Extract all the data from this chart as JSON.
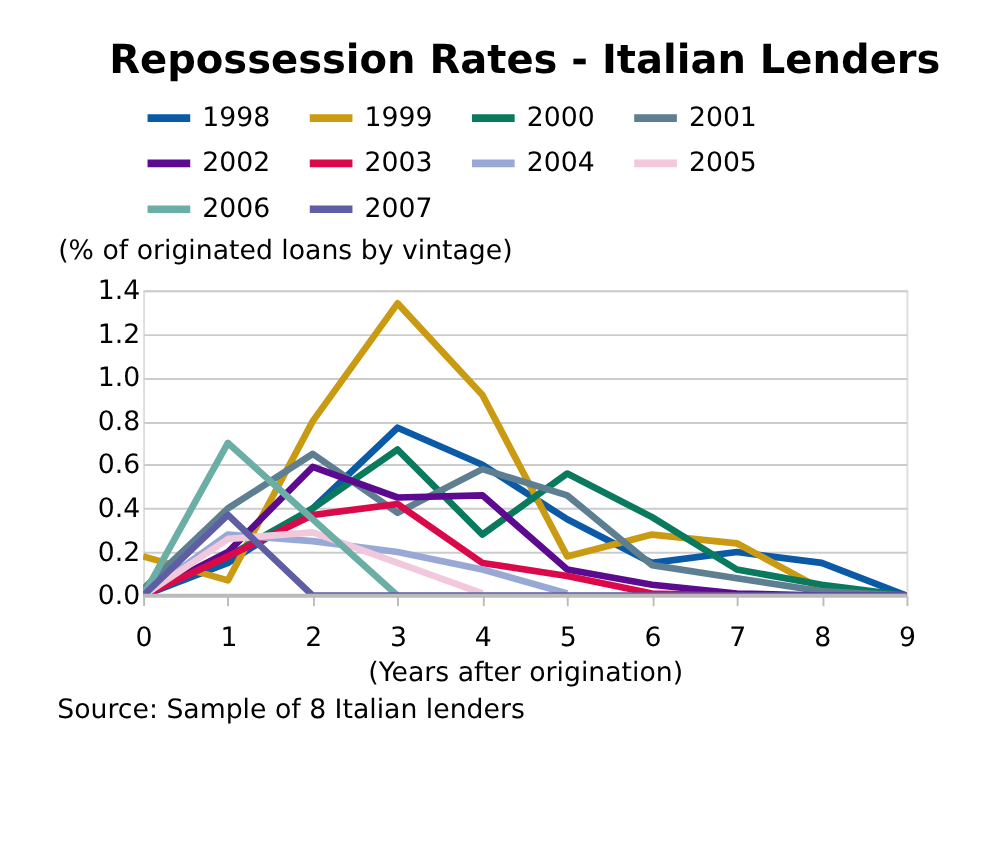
{
  "chart_data": {
    "type": "line",
    "title": "Repossession Rates - Italian Lenders",
    "ylabel": "(% of originated loans by vintage)",
    "xlabel": "(Years after origination)",
    "x": [
      0,
      1,
      2,
      3,
      4,
      5,
      6,
      7,
      8,
      9
    ],
    "series": [
      {
        "name": "1998",
        "color": "#0a5aa6",
        "values": [
          0,
          0.15,
          0.4,
          0.77,
          0.6,
          0.35,
          0.15,
          0.2,
          0.15,
          0
        ]
      },
      {
        "name": "1999",
        "color": "#c99a12",
        "values": [
          0.18,
          0.07,
          0.8,
          1.34,
          0.92,
          0.18,
          0.28,
          0.24,
          0.03,
          0
        ]
      },
      {
        "name": "2000",
        "color": "#0a7a5e",
        "values": [
          0,
          0.18,
          0.4,
          0.67,
          0.28,
          0.56,
          0.36,
          0.12,
          0.05,
          0
        ]
      },
      {
        "name": "2001",
        "color": "#5e7f91",
        "values": [
          0.03,
          0.4,
          0.65,
          0.38,
          0.58,
          0.46,
          0.14,
          0.08,
          0.02,
          0
        ]
      },
      {
        "name": "2002",
        "color": "#5c0a8f",
        "values": [
          0,
          0.2,
          0.59,
          0.45,
          0.46,
          0.12,
          0.05,
          0.01,
          0,
          0
        ]
      },
      {
        "name": "2003",
        "color": "#d9094a",
        "values": [
          0,
          0.18,
          0.37,
          0.42,
          0.15,
          0.09,
          0.01,
          0,
          null,
          null
        ]
      },
      {
        "name": "2004",
        "color": "#9aa8d6",
        "values": [
          0,
          0.28,
          0.25,
          0.2,
          0.12,
          0.01,
          null,
          null,
          null,
          null
        ]
      },
      {
        "name": "2005",
        "color": "#f2c8dc",
        "values": [
          0,
          0.26,
          0.29,
          0.15,
          0.01,
          null,
          null,
          null,
          null,
          null
        ]
      },
      {
        "name": "2006",
        "color": "#6aaea5",
        "values": [
          0,
          0.7,
          0.35,
          0,
          null,
          null,
          null,
          null,
          null,
          null
        ]
      },
      {
        "name": "2007",
        "color": "#5f5ea5",
        "values": [
          0,
          0.37,
          0,
          0,
          0,
          0,
          0,
          0,
          0,
          0
        ]
      }
    ],
    "xlim": [
      0,
      9
    ],
    "xticks": [
      0,
      1,
      2,
      3,
      4,
      5,
      6,
      7,
      8,
      9
    ],
    "ylim": [
      0,
      1.4
    ],
    "yticks": [
      {
        "value": 0,
        "label": "0.0"
      },
      0.2,
      0.4,
      0.6,
      0.8,
      {
        "value": 1,
        "label": "1.0"
      },
      1.2,
      1.4
    ],
    "grid": "y",
    "legend": "top",
    "line_style": "solid",
    "marker": "none",
    "annotations": [
      "Source: Sample of 8 Italian lenders"
    ]
  }
}
